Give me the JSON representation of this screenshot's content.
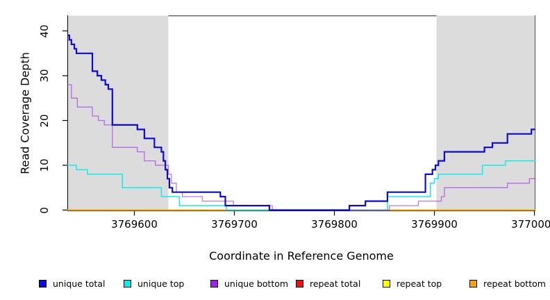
{
  "figure": {
    "background": "#ffffff",
    "frame_color": "#4d4d4d",
    "axis_color": "#000000"
  },
  "chart_data": {
    "type": "line",
    "subtype": "step-after",
    "title": "",
    "xlabel": "Coordinate in Reference Genome",
    "ylabel": "Read Coverage Depth",
    "xlim": [
      3769533,
      3770001
    ],
    "ylim": [
      0,
      43.5
    ],
    "x_ticks": [
      3769600,
      3769700,
      3769800,
      3769900,
      3770000
    ],
    "y_ticks": [
      0,
      10,
      20,
      30,
      40
    ],
    "grid": false,
    "legend_position": "bottom",
    "shaded_regions": [
      {
        "name": "left-shaded-region",
        "x0": 3769533,
        "x1": 3769634,
        "color": "#dcdcdc"
      },
      {
        "name": "right-shaded-region",
        "x0": 3769902,
        "x1": 3770001,
        "color": "#dcdcdc"
      }
    ],
    "draw_order": [
      "repeat total",
      "repeat top",
      "repeat bottom",
      "unique top",
      "unique bottom",
      "unique total"
    ],
    "series": [
      {
        "name": "unique total",
        "color": "#0a0ae0",
        "width": 2.2,
        "opacity": 1,
        "points": [
          [
            3769533,
            39
          ],
          [
            3769535,
            38
          ],
          [
            3769537,
            37
          ],
          [
            3769540,
            36
          ],
          [
            3769542,
            35
          ],
          [
            3769558,
            31
          ],
          [
            3769563,
            30
          ],
          [
            3769567,
            29
          ],
          [
            3769571,
            28
          ],
          [
            3769574,
            27
          ],
          [
            3769578,
            19
          ],
          [
            3769603,
            18
          ],
          [
            3769610,
            16
          ],
          [
            3769620,
            14
          ],
          [
            3769627,
            13
          ],
          [
            3769629,
            11
          ],
          [
            3769631,
            9
          ],
          [
            3769633,
            7
          ],
          [
            3769635,
            5
          ],
          [
            3769638,
            4
          ],
          [
            3769686,
            3
          ],
          [
            3769691,
            1
          ],
          [
            3769735,
            0
          ],
          [
            3769815,
            1
          ],
          [
            3769831,
            2
          ],
          [
            3769853,
            4
          ],
          [
            3769891,
            8
          ],
          [
            3769898,
            9
          ],
          [
            3769901,
            10
          ],
          [
            3769904,
            11
          ],
          [
            3769910,
            13
          ],
          [
            3769950,
            14
          ],
          [
            3769958,
            15
          ],
          [
            3769973,
            17
          ],
          [
            3769997,
            18
          ]
        ]
      },
      {
        "name": "unique top",
        "color": "#00eeee",
        "width": 1.5,
        "opacity": 0.95,
        "points": [
          [
            3769533,
            10
          ],
          [
            3769542,
            9
          ],
          [
            3769553,
            8
          ],
          [
            3769588,
            5
          ],
          [
            3769627,
            3
          ],
          [
            3769645,
            1
          ],
          [
            3769692,
            0
          ],
          [
            3769853,
            3
          ],
          [
            3769896,
            6
          ],
          [
            3769900,
            7
          ],
          [
            3769904,
            8
          ],
          [
            3769948,
            10
          ],
          [
            3769971,
            11
          ]
        ]
      },
      {
        "name": "unique bottom",
        "color": "#a020f0",
        "width": 1.3,
        "opacity": 0.62,
        "points": [
          [
            3769533,
            28
          ],
          [
            3769537,
            25
          ],
          [
            3769543,
            23
          ],
          [
            3769558,
            21
          ],
          [
            3769564,
            20
          ],
          [
            3769570,
            19
          ],
          [
            3769578,
            14
          ],
          [
            3769603,
            13
          ],
          [
            3769610,
            11
          ],
          [
            3769621,
            10
          ],
          [
            3769634,
            8
          ],
          [
            3769637,
            6
          ],
          [
            3769642,
            4
          ],
          [
            3769648,
            3
          ],
          [
            3769668,
            2
          ],
          [
            3769699,
            1
          ],
          [
            3769738,
            0
          ],
          [
            3769855,
            1
          ],
          [
            3769884,
            2
          ],
          [
            3769907,
            3
          ],
          [
            3769910,
            5
          ],
          [
            3769973,
            6
          ],
          [
            3769995,
            7
          ]
        ]
      },
      {
        "name": "repeat total",
        "color": "#ee1111",
        "width": 1.6,
        "opacity": 1,
        "points": [
          [
            3769533,
            0
          ]
        ]
      },
      {
        "name": "repeat top",
        "color": "#ffff00",
        "width": 1.6,
        "opacity": 1,
        "points": [
          [
            3769533,
            0
          ]
        ]
      },
      {
        "name": "repeat bottom",
        "color": "#ffa500",
        "width": 1.8,
        "opacity": 1,
        "points": [
          [
            3769533,
            0
          ]
        ]
      }
    ]
  },
  "legend": {
    "item_lefts": [
      56,
      178,
      303,
      426,
      551,
      676
    ]
  }
}
